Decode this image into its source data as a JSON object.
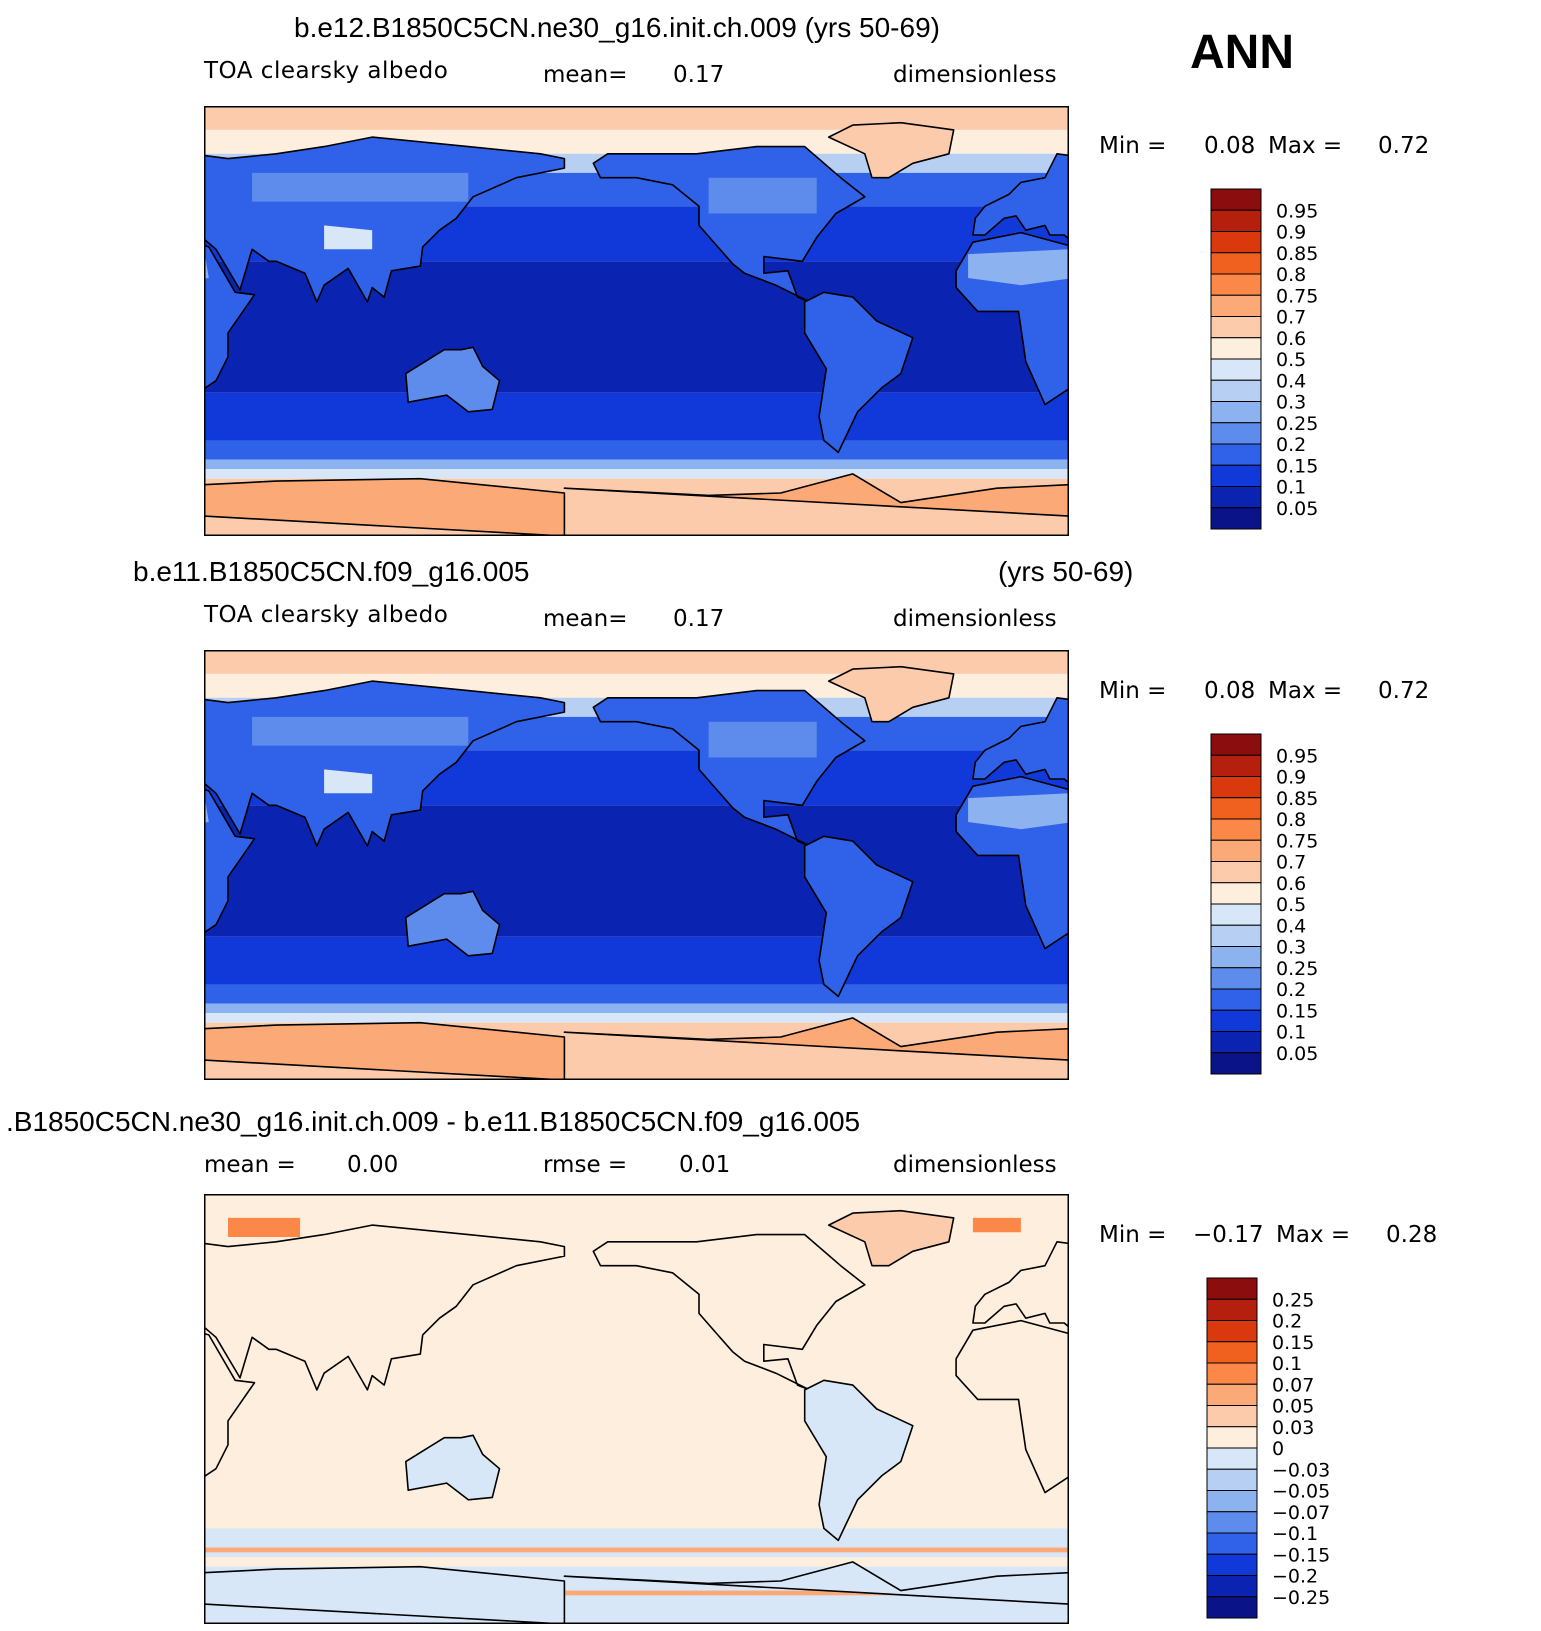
{
  "season": "ANN",
  "panels": [
    {
      "id": "top",
      "title": "b.e12.B1850C5CN.ne30_g16.init.ch.009 (yrs 50-69)",
      "title_right": "",
      "subtitle_left": "TOA clearsky albedo",
      "subtitle_mid_label": "mean=",
      "subtitle_mid_value": "0.17",
      "subtitle_units": "dimensionless",
      "min_label": "Min =",
      "min_value": "0.08",
      "max_label": "Max =",
      "max_value": "0.72",
      "colorbar": {
        "labels": [
          "0.95",
          "0.9",
          "0.85",
          "0.8",
          "0.75",
          "0.7",
          "0.6",
          "0.5",
          "0.4",
          "0.3",
          "0.25",
          "0.2",
          "0.15",
          "0.1",
          "0.05"
        ],
        "colors": [
          "#8c0d0d",
          "#b5200e",
          "#d9390c",
          "#f0601e",
          "#fb8848",
          "#fca978",
          "#fccbab",
          "#fdeedd",
          "#d7e7f8",
          "#b6cff3",
          "#8cb2f0",
          "#5e8cec",
          "#2f62e8",
          "#1138d8",
          "#0a23b0",
          "#0a1488"
        ]
      },
      "map_field": "absolute"
    },
    {
      "id": "middle",
      "title": "b.e11.B1850C5CN.f09_g16.005",
      "title_right": "(yrs 50-69)",
      "subtitle_left": "TOA clearsky albedo",
      "subtitle_mid_label": "mean=",
      "subtitle_mid_value": "0.17",
      "subtitle_units": "dimensionless",
      "min_label": "Min =",
      "min_value": "0.08",
      "max_label": "Max =",
      "max_value": "0.72",
      "colorbar": {
        "labels": [
          "0.95",
          "0.9",
          "0.85",
          "0.8",
          "0.75",
          "0.7",
          "0.6",
          "0.5",
          "0.4",
          "0.3",
          "0.25",
          "0.2",
          "0.15",
          "0.1",
          "0.05"
        ],
        "colors": [
          "#8c0d0d",
          "#b5200e",
          "#d9390c",
          "#f0601e",
          "#fb8848",
          "#fca978",
          "#fccbab",
          "#fdeedd",
          "#d7e7f8",
          "#b6cff3",
          "#8cb2f0",
          "#5e8cec",
          "#2f62e8",
          "#1138d8",
          "#0a23b0",
          "#0a1488"
        ]
      },
      "map_field": "absolute"
    },
    {
      "id": "bottom",
      "title": ".B1850C5CN.ne30_g16.init.ch.009 - b.e11.B1850C5CN.f09_g16.005",
      "title_right": "",
      "subtitle_left_label": "mean =",
      "subtitle_left_value": "0.00",
      "subtitle_mid_label": "rmse =",
      "subtitle_mid_value": "0.01",
      "subtitle_units": "dimensionless",
      "min_label": "Min =",
      "min_value": "−0.17",
      "max_label": "Max =",
      "max_value": "0.28",
      "colorbar": {
        "labels": [
          "0.25",
          "0.2",
          "0.15",
          "0.1",
          "0.07",
          "0.05",
          "0.03",
          "0",
          "−0.03",
          "−0.05",
          "−0.07",
          "−0.1",
          "−0.15",
          "−0.2",
          "−0.25"
        ],
        "colors": [
          "#8c0d0d",
          "#b5200e",
          "#d9390c",
          "#f0601e",
          "#fb8848",
          "#fca978",
          "#fccbab",
          "#fdeedd",
          "#d7e7f8",
          "#b6cff3",
          "#8cb2f0",
          "#5e8cec",
          "#2f62e8",
          "#1138d8",
          "#0a23b0",
          "#0a1488"
        ]
      },
      "map_field": "difference"
    }
  ]
}
